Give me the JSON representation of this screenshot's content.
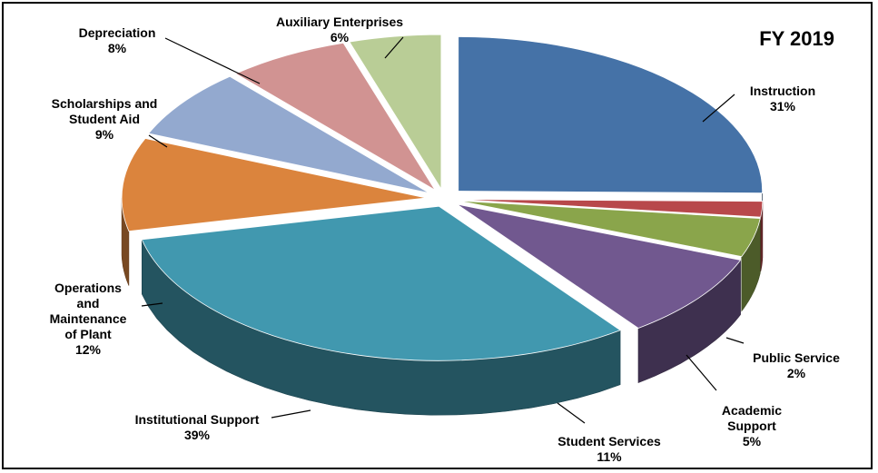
{
  "chart_data": {
    "type": "pie",
    "title": "FY 2019",
    "slices": [
      {
        "label": "Instruction",
        "pct_label": "31%",
        "value": 31,
        "color": "#4572A7"
      },
      {
        "label": "Public Service",
        "pct_label": "2%",
        "value": 2,
        "color": "#B8484B"
      },
      {
        "label": "Academic\nSupport",
        "pct_label": "5%",
        "value": 5,
        "color": "#8AA54B"
      },
      {
        "label": "Student Services",
        "pct_label": "11%",
        "value": 11,
        "color": "#71588F"
      },
      {
        "label": "Institutional Support",
        "pct_label": "39%",
        "value": 39,
        "color": "#4198AF"
      },
      {
        "label": "Operations\nand\nMaintenance\nof Plant",
        "pct_label": "12%",
        "value": 12,
        "color": "#DB843D"
      },
      {
        "label": "Scholarships and\nStudent Aid",
        "pct_label": "9%",
        "value": 9,
        "color": "#93A9CF"
      },
      {
        "label": "Depreciation",
        "pct_label": "8%",
        "value": 8,
        "color": "#D19392"
      },
      {
        "label": "Auxiliary  Enterprises",
        "pct_label": "6%",
        "value": 6,
        "color": "#B9CD96"
      }
    ]
  }
}
